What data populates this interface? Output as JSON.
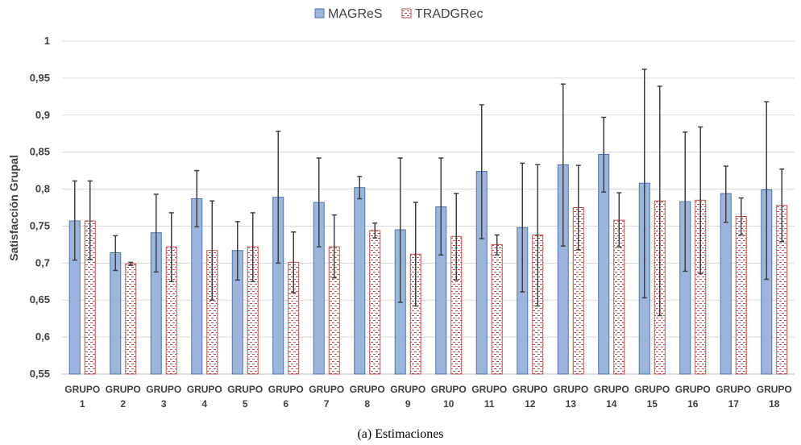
{
  "caption": "(a) Estimaciones",
  "chart_data": {
    "type": "bar",
    "ylabel": "Satisfacción Grupal",
    "xlabel": "",
    "ylim": [
      0.55,
      1
    ],
    "yticks": [
      "0,55",
      "0,6",
      "0,65",
      "0,7",
      "0,75",
      "0,8",
      "0,85",
      "0,9",
      "0,95",
      "1"
    ],
    "grid": true,
    "legend_position": "top",
    "categories": [
      [
        "GRUPO",
        "1"
      ],
      [
        "GRUPO",
        "2"
      ],
      [
        "GRUPO",
        "3"
      ],
      [
        "GRUPO",
        "4"
      ],
      [
        "GRUPO",
        "5"
      ],
      [
        "GRUPO",
        "6"
      ],
      [
        "GRUPO",
        "7"
      ],
      [
        "GRUPO",
        "8"
      ],
      [
        "GRUPO",
        "9"
      ],
      [
        "GRUPO",
        "10"
      ],
      [
        "GRUPO",
        "11"
      ],
      [
        "GRUPO",
        "12"
      ],
      [
        "GRUPO",
        "13"
      ],
      [
        "GRUPO",
        "14"
      ],
      [
        "GRUPO",
        "15"
      ],
      [
        "GRUPO",
        "16"
      ],
      [
        "GRUPO",
        "17"
      ],
      [
        "GRUPO",
        "18"
      ]
    ],
    "series": [
      {
        "name": "MAGReS",
        "fill": "#9BB5DC",
        "stroke": "#4F73B0",
        "pattern": "solid",
        "values": [
          0.757,
          0.714,
          0.741,
          0.787,
          0.717,
          0.789,
          0.782,
          0.802,
          0.745,
          0.776,
          0.824,
          0.748,
          0.833,
          0.847,
          0.808,
          0.783,
          0.794,
          0.799
        ],
        "error_low": [
          0.704,
          0.69,
          0.688,
          0.749,
          0.677,
          0.7,
          0.722,
          0.787,
          0.647,
          0.711,
          0.733,
          0.661,
          0.723,
          0.796,
          0.653,
          0.689,
          0.755,
          0.678
        ],
        "error_high": [
          0.811,
          0.737,
          0.793,
          0.825,
          0.756,
          0.878,
          0.842,
          0.817,
          0.842,
          0.842,
          0.914,
          0.835,
          0.942,
          0.897,
          0.962,
          0.877,
          0.831,
          0.918
        ]
      },
      {
        "name": "TRADGRec",
        "fill": "#FFFFFF",
        "stroke": "#C0504D",
        "pattern": "dashed",
        "values": [
          0.757,
          0.699,
          0.722,
          0.717,
          0.722,
          0.701,
          0.722,
          0.744,
          0.712,
          0.736,
          0.725,
          0.738,
          0.775,
          0.758,
          0.784,
          0.785,
          0.763,
          0.778
        ],
        "error_low": [
          0.705,
          0.697,
          0.675,
          0.65,
          0.675,
          0.66,
          0.68,
          0.734,
          0.642,
          0.677,
          0.711,
          0.642,
          0.718,
          0.722,
          0.629,
          0.686,
          0.738,
          0.729
        ],
        "error_high": [
          0.811,
          0.701,
          0.768,
          0.784,
          0.768,
          0.742,
          0.765,
          0.754,
          0.782,
          0.794,
          0.738,
          0.833,
          0.832,
          0.795,
          0.939,
          0.884,
          0.788,
          0.827
        ]
      }
    ],
    "error_bar_color": "#404040",
    "grid_color": "#D9D9D9",
    "axis_color": "#BFBFBF"
  }
}
